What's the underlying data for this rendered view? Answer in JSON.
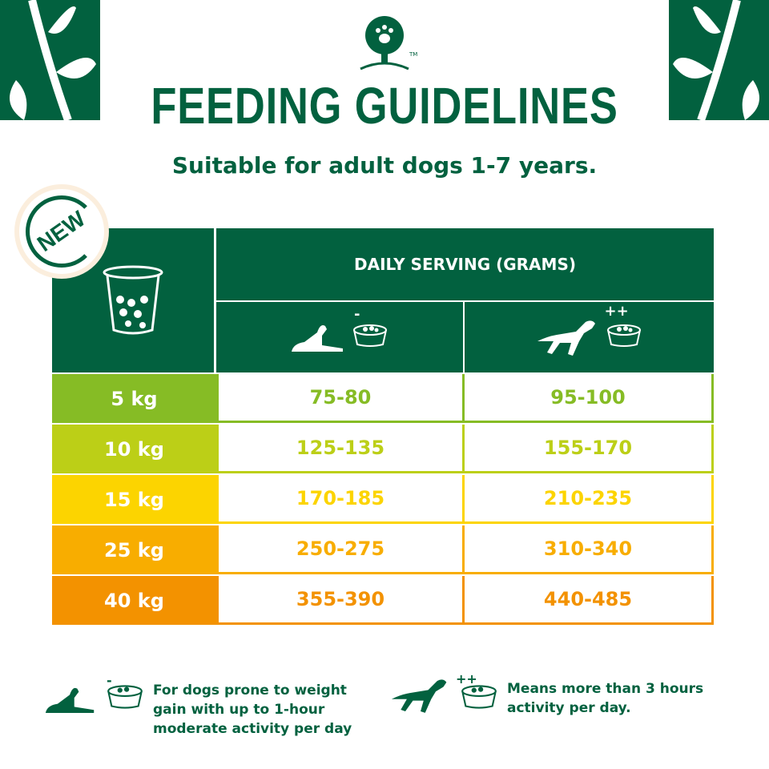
{
  "header": {
    "title": "FEEDING GUIDELINES",
    "subtitle": "Suitable for adult dogs 1-7 years.",
    "badge": "NEW",
    "logo_mark": "TM"
  },
  "colors": {
    "brand_green": "#02613f",
    "badge_ring": "#fbeedd"
  },
  "table": {
    "header": "DAILY SERVING (GRAMS)",
    "corner_icon": "food-cup-icon",
    "columns": [
      {
        "icon": "resting-dog-bowl-minus-icon",
        "symbol": "-"
      },
      {
        "icon": "jumping-dog-bowl-plus-icon",
        "symbol": "++"
      }
    ],
    "rows": [
      {
        "weight": "5 kg",
        "low": "75-80",
        "high": "95-100",
        "color": "#86bc25"
      },
      {
        "weight": "10 kg",
        "low": "125-135",
        "high": "155-170",
        "color": "#bccf17"
      },
      {
        "weight": "15 kg",
        "low": "170-185",
        "high": "210-235",
        "color": "#fcd400"
      },
      {
        "weight": "25 kg",
        "low": "250-275",
        "high": "310-340",
        "color": "#f8ad00"
      },
      {
        "weight": "40 kg",
        "low": "355-390",
        "high": "440-485",
        "color": "#f39200"
      }
    ]
  },
  "legend": [
    {
      "symbol": "-",
      "text": "For dogs prone to weight gain with up to 1-hour moderate activity per day"
    },
    {
      "symbol": "++",
      "text": "Means more than 3 hours activity per day."
    }
  ]
}
